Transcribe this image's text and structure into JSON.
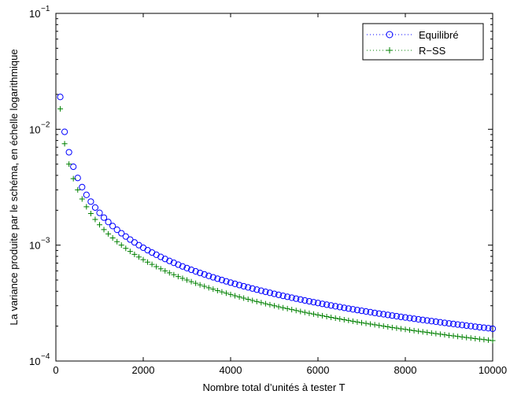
{
  "chart_data": {
    "type": "scatter",
    "title": "",
    "xlabel": "Nombre total d’unités à tester T",
    "ylabel": "La variance produite par le schéma, en échelle logarithmique",
    "xlim": [
      0,
      10000
    ],
    "ylim": [
      0.0001,
      0.1
    ],
    "yscale": "log",
    "grid": false,
    "legend_position": "top-right",
    "x_ticks": [
      {
        "value": 0,
        "label": "0"
      },
      {
        "value": 2000,
        "label": "2000"
      },
      {
        "value": 4000,
        "label": "4000"
      },
      {
        "value": 6000,
        "label": "6000"
      },
      {
        "value": 8000,
        "label": "8000"
      },
      {
        "value": 10000,
        "label": "10000"
      }
    ],
    "y_ticks": [
      {
        "value": 0.0001,
        "base": "10",
        "exp": "−4"
      },
      {
        "value": 0.001,
        "base": "10",
        "exp": "−3"
      },
      {
        "value": 0.01,
        "base": "10",
        "exp": "−2"
      },
      {
        "value": 0.1,
        "base": "10",
        "exp": "−1"
      }
    ],
    "x_step": 100,
    "series": [
      {
        "name": "Equilibré",
        "marker": "circle",
        "color": "#0000ff",
        "k": 1.9,
        "values_note": "y = k / x"
      },
      {
        "name": "R−SS",
        "marker": "plus",
        "color": "#008000",
        "k": 1.5,
        "values_note": "y = k / x"
      }
    ]
  }
}
